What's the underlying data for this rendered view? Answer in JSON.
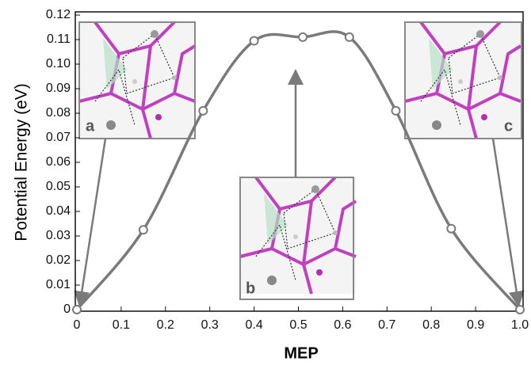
{
  "chart_data": {
    "type": "line",
    "xlabel": "MEP",
    "ylabel": "Potential Energy (eV)",
    "x": [
      0,
      0.15,
      0.285,
      0.4,
      0.51,
      0.615,
      0.72,
      0.845,
      1.0
    ],
    "series": [
      {
        "color": "#7a7a7a",
        "values": [
          0,
          0.0325,
          0.081,
          0.1095,
          0.111,
          0.111,
          0.081,
          0.033,
          0
        ]
      }
    ],
    "xlim": [
      0,
      1.0
    ],
    "ylim": [
      0,
      0.12
    ],
    "xticks": [
      0,
      0.1,
      0.2,
      0.3,
      0.4,
      0.5,
      0.6,
      0.7,
      0.8,
      0.9,
      {
        "value": 1,
        "label": "1.0"
      }
    ],
    "yticks": [
      0,
      0.01,
      0.02,
      0.03,
      0.04,
      0.05,
      0.06,
      0.07,
      0.08,
      0.09,
      {
        "value": 0.1,
        "label": "0.10"
      },
      0.11,
      0.12
    ],
    "annotations": [
      "a",
      "b",
      "c"
    ]
  }
}
